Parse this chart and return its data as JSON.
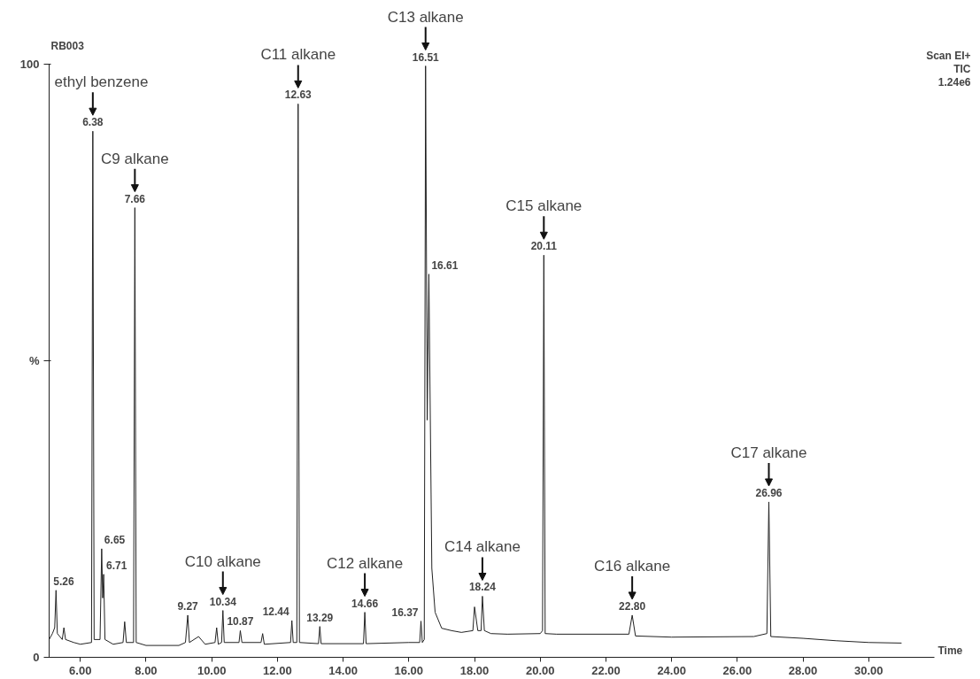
{
  "chart_data": {
    "type": "line",
    "xlabel": "Time",
    "xlim": [
      5.05,
      32
    ],
    "xticks": [
      {
        "value": 6,
        "label": "6.00"
      },
      {
        "value": 8,
        "label": "8.00"
      },
      {
        "value": 10,
        "label": "10.00"
      },
      {
        "value": 12,
        "label": "12.00"
      },
      {
        "value": 14,
        "label": "14.00"
      },
      {
        "value": 16,
        "label": "16.00"
      },
      {
        "value": 18,
        "label": "18.00"
      },
      {
        "value": 20,
        "label": "20.00"
      },
      {
        "value": 22,
        "label": "22.00"
      },
      {
        "value": 24,
        "label": "24.00"
      },
      {
        "value": 26,
        "label": "26.00"
      },
      {
        "value": 28,
        "label": "28.00"
      },
      {
        "value": 30,
        "label": "30.00"
      }
    ],
    "ylim": [
      0,
      100
    ],
    "yticks": [
      0,
      {
        "value": 50,
        "label": "%"
      },
      100
    ],
    "grid": false,
    "series": [
      {
        "color": "#222222",
        "x": [
          5.05,
          5.15,
          5.22,
          5.26,
          5.3,
          5.45,
          5.5,
          5.55,
          5.8,
          6.0,
          6.34,
          6.38,
          6.42,
          6.6,
          6.65,
          6.68,
          6.71,
          6.75,
          7.0,
          7.3,
          7.35,
          7.4,
          7.62,
          7.66,
          7.7,
          8.0,
          9.0,
          9.2,
          9.27,
          9.32,
          9.6,
          9.8,
          10.1,
          10.15,
          10.2,
          10.3,
          10.34,
          10.38,
          10.83,
          10.87,
          10.92,
          11.5,
          11.55,
          11.6,
          12.4,
          12.44,
          12.48,
          12.59,
          12.63,
          12.67,
          13.25,
          13.29,
          13.33,
          14.62,
          14.66,
          14.7,
          16.0,
          16.33,
          16.37,
          16.41,
          16.47,
          16.51,
          16.56,
          16.61,
          16.7,
          16.8,
          17.0,
          17.3,
          17.6,
          17.95,
          18.0,
          18.1,
          18.2,
          18.24,
          18.3,
          18.5,
          19.0,
          20.0,
          20.07,
          20.11,
          20.15,
          20.5,
          22.7,
          22.8,
          22.9,
          24.0,
          26.5,
          26.9,
          26.96,
          27.02,
          28.0,
          29.0,
          30.0,
          31.0
        ],
        "values": [
          3,
          4,
          5,
          11.3,
          4,
          3,
          5,
          3,
          2.5,
          2.2,
          2.5,
          88.7,
          3,
          3,
          18.3,
          10,
          14,
          3,
          2.2,
          2.5,
          6,
          2.5,
          2.5,
          75.8,
          2.5,
          2,
          2,
          2.5,
          7.1,
          2.5,
          3.5,
          2.2,
          2.5,
          5,
          2.2,
          2.5,
          7.9,
          2.5,
          2.5,
          4.5,
          2.5,
          2.5,
          4,
          2.2,
          2.5,
          6.2,
          2.5,
          2.5,
          93.3,
          2.5,
          2.3,
          5.2,
          2.3,
          2.3,
          7.6,
          2.3,
          2.5,
          2.5,
          6.1,
          2.5,
          3,
          99.7,
          40,
          64.6,
          15,
          7.6,
          4.9,
          4.5,
          4.2,
          4.5,
          8.5,
          4.5,
          4.5,
          10.3,
          4.5,
          4,
          3.9,
          4,
          4.5,
          67.8,
          4,
          3.9,
          3.9,
          7.1,
          3.6,
          3.4,
          3.5,
          4,
          26.2,
          3.5,
          3.2,
          2.8,
          2.5,
          2.4
        ]
      }
    ],
    "annotations": [
      "RB003",
      "Scan EI+",
      "TIC",
      "1.24e6",
      {
        "text": "5.26",
        "x": 5.26,
        "y": 11.3
      },
      {
        "text": "6.38",
        "x": 6.38,
        "y": 88.7
      },
      {
        "text": "ethyl benzene",
        "x": 6.38,
        "y": 88.7
      },
      {
        "text": "6.65",
        "x": 6.65,
        "y": 18.3
      },
      {
        "text": "6.71",
        "x": 6.71,
        "y": 14
      },
      {
        "text": "7.66",
        "x": 7.66,
        "y": 75.8
      },
      {
        "text": "C9 alkane",
        "x": 7.66,
        "y": 75.8
      },
      {
        "text": "9.27",
        "x": 9.27,
        "y": 7.1
      },
      {
        "text": "10.34",
        "x": 10.34,
        "y": 7.9
      },
      {
        "text": "C10 alkane",
        "x": 10.34,
        "y": 7.9
      },
      {
        "text": "10.87",
        "x": 10.87,
        "y": 4.5
      },
      {
        "text": "12.44",
        "x": 12.44,
        "y": 6.2
      },
      {
        "text": "12.63",
        "x": 12.63,
        "y": 93.3
      },
      {
        "text": "C11 alkane",
        "x": 12.63,
        "y": 93.3
      },
      {
        "text": "13.29",
        "x": 13.29,
        "y": 5.2
      },
      {
        "text": "14.66",
        "x": 14.66,
        "y": 7.6
      },
      {
        "text": "C12 alkane",
        "x": 14.66,
        "y": 7.6
      },
      {
        "text": "16.37",
        "x": 16.37,
        "y": 6.1
      },
      {
        "text": "16.51",
        "x": 16.51,
        "y": 99.7
      },
      {
        "text": "C13 alkane",
        "x": 16.51,
        "y": 99.7
      },
      {
        "text": "16.61",
        "x": 16.61,
        "y": 64.6
      },
      {
        "text": "18.24",
        "x": 18.24,
        "y": 10.3
      },
      {
        "text": "C14 alkane",
        "x": 18.24,
        "y": 10.3
      },
      {
        "text": "20.11",
        "x": 20.11,
        "y": 67.8
      },
      {
        "text": "C15 alkane",
        "x": 20.11,
        "y": 67.8
      },
      {
        "text": "22.80",
        "x": 22.8,
        "y": 7.1
      },
      {
        "text": "C16 alkane",
        "x": 22.8,
        "y": 7.1
      },
      {
        "text": "26.96",
        "x": 26.96,
        "y": 26.2
      },
      {
        "text": "C17 alkane",
        "x": 26.96,
        "y": 26.2
      }
    ]
  }
}
